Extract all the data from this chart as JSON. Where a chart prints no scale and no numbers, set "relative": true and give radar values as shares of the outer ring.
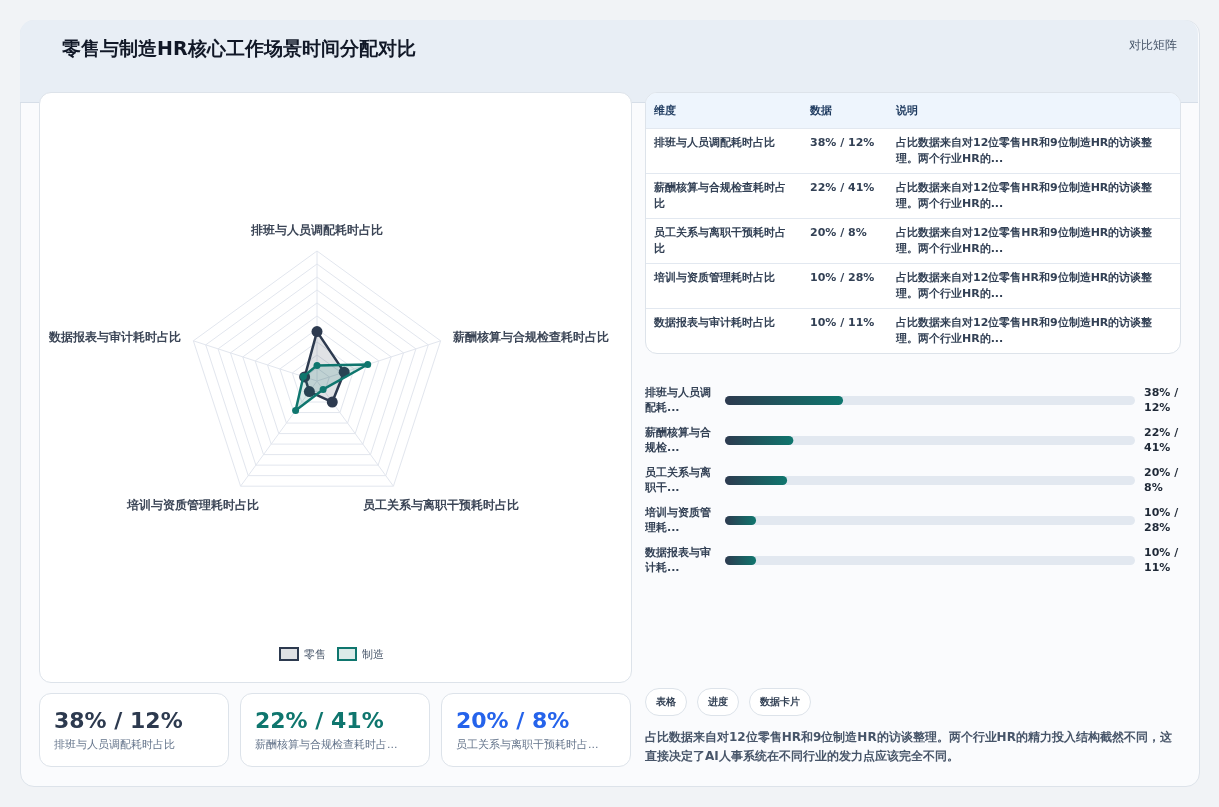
{
  "chart_data": [
    {
      "type": "radar",
      "title": "零售与制造HR核心工作场景时间分配对比",
      "annotations": [
        "对比矩阵"
      ],
      "relative": true,
      "legend": "bottom",
      "marker": "circle",
      "grid": true,
      "categories": [
        "排班与人员调配耗时占比",
        "薪酬核算与合规检查耗时占比",
        "员工关系与离职干预耗时占比",
        "培训与资质管理耗时占比",
        "数据报表与审计耗时占比"
      ],
      "series": [
        {
          "name": "零售",
          "color": "#2d3a4f",
          "values": [
            0.38,
            0.22,
            0.2,
            0.1,
            0.1
          ]
        },
        {
          "name": "制造",
          "color": "#0f766e",
          "values": [
            0.12,
            0.41,
            0.08,
            0.28,
            0.11
          ]
        }
      ]
    },
    {
      "type": "other",
      "annotations": [
        "维度",
        "数据",
        "说明",
        "排班与人员调配耗时占比",
        "38% / 12%",
        "占比数据来自对12位零售HR和9位制造HR的访谈整理。两个行业HR的...",
        "薪酬核算与合规检查耗时占比",
        "22% / 41%",
        "占比数据来自对12位零售HR和9位制造HR的访谈整理。两个行业HR的...",
        "员工关系与离职干预耗时占比",
        "20% / 8%",
        "占比数据来自对12位零售HR和9位制造HR的访谈整理。两个行业HR的...",
        "培训与资质管理耗时占比",
        "10% / 28%",
        "占比数据来自对12位零售HR和9位制造HR的访谈整理。两个行业HR的...",
        "数据报表与审计耗时占比",
        "10% / 11%",
        "占比数据来自对12位零售HR和9位制造HR的访谈整理。两个行业HR的..."
      ]
    },
    {
      "type": "bar",
      "orientation": "horizontal",
      "xlim": [
        0,
        132
      ],
      "color": "#0f766e",
      "categories": [
        "排班与人员调配耗...",
        "薪酬核算与合规检...",
        "员工关系与离职干...",
        "培训与资质管理耗...",
        "数据报表与审计耗..."
      ],
      "values": [
        38,
        22,
        20,
        10,
        10
      ],
      "value_labels": [
        "38% / 12%",
        "22% / 41%",
        "20% / 8%",
        "10% / 28%",
        "10% / 11%"
      ]
    },
    {
      "type": "other",
      "annotations": [
        "38% / 12%",
        "排班与人员调配耗时占比",
        "22% / 41%",
        "薪酬核算与合规检查耗时占...",
        "20% / 8%",
        "员工关系与离职干预耗时占..."
      ]
    },
    {
      "type": "other",
      "annotations": [
        "表格",
        "进度",
        "数据卡片",
        "占比数据来自对12位零售HR和9位制造HR的访谈整理。两个行业HR的精力投入结构截然不同，这直接决定了AI人事系统在不同行业的发力点应该完全不同。"
      ]
    }
  ]
}
